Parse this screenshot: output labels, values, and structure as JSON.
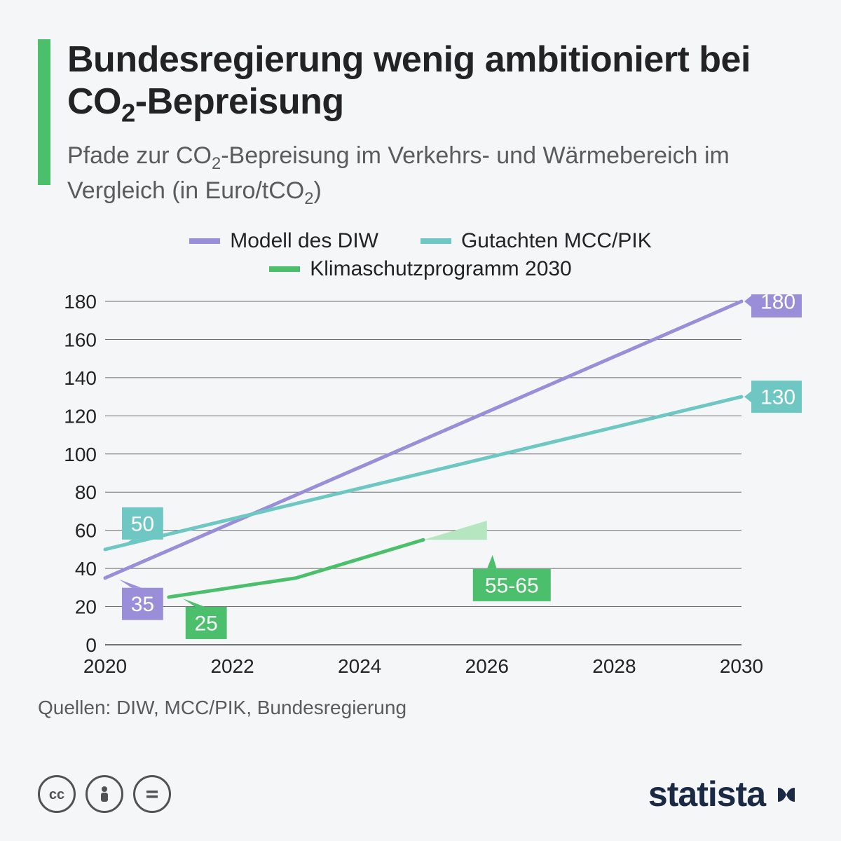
{
  "header": {
    "title_html": "Bundesregierung wenig ambitioniert bei CO<sub class=\"sub2\">2</sub>-Bepreisung",
    "subtitle_html": "Pfade zur CO<sub class=\"sub2\">2</sub>-Bepreisung im Verkehrs- und Wärmebereich im Vergleich (in Euro/tCO<sub class=\"sub2\">2</sub>)",
    "accent_color": "#4bbf6b"
  },
  "legend": {
    "items": [
      {
        "label": "Modell des DIW",
        "color": "#9a8ed9"
      },
      {
        "label": "Gutachten MCC/PIK",
        "color": "#6ec7c2"
      },
      {
        "label": "Klimaschutzprogramm 2030",
        "color": "#4bbf6b"
      }
    ]
  },
  "chart": {
    "type": "line",
    "x_domain": [
      2020,
      2030
    ],
    "y_domain": [
      0,
      180
    ],
    "y_ticks": [
      0,
      20,
      40,
      60,
      80,
      100,
      120,
      140,
      160,
      180
    ],
    "x_ticks": [
      2020,
      2022,
      2024,
      2026,
      2028,
      2030
    ],
    "grid_color": "#6b6b6e",
    "axis_font_size": 28,
    "axis_color": "#232326",
    "line_width": 5,
    "series": [
      {
        "name": "Modell des DIW",
        "color": "#9a8ed9",
        "points": [
          [
            2020,
            35
          ],
          [
            2030,
            180
          ]
        ],
        "start_label": {
          "text": "35",
          "x": 2020,
          "y": 35,
          "pos": "below-right"
        },
        "end_label": {
          "text": "180",
          "x": 2030,
          "y": 180,
          "pos": "right"
        }
      },
      {
        "name": "Gutachten MCC/PIK",
        "color": "#6ec7c2",
        "points": [
          [
            2020,
            50
          ],
          [
            2030,
            130
          ]
        ],
        "start_label": {
          "text": "50",
          "x": 2020,
          "y": 50,
          "pos": "above-right"
        },
        "end_label": {
          "text": "130",
          "x": 2030,
          "y": 130,
          "pos": "right"
        }
      },
      {
        "name": "Klimaschutzprogramm 2030",
        "color": "#4bbf6b",
        "points": [
          [
            2021,
            25
          ],
          [
            2022,
            30
          ],
          [
            2023,
            35
          ],
          [
            2025,
            55
          ]
        ],
        "range_band": {
          "from_x": 2025,
          "to_x": 2026,
          "from_low": 55,
          "from_high": 55,
          "to_low": 55,
          "to_high": 65,
          "fill": "#b6e6bf"
        },
        "start_label": {
          "text": "25",
          "x": 2021,
          "y": 25,
          "pos": "below-right"
        },
        "end_label": {
          "text": "55-65",
          "x": 2026,
          "y": 50,
          "pos": "below-right-wide"
        }
      }
    ],
    "background": "#f4f6f8"
  },
  "source": {
    "prefix": "Quellen:",
    "text": "DIW, MCC/PIK, Bundesregierung"
  },
  "footer": {
    "cc_icons": [
      "cc",
      "by",
      "nd"
    ],
    "logo_text": "statista",
    "logo_color": "#1a2a44"
  }
}
